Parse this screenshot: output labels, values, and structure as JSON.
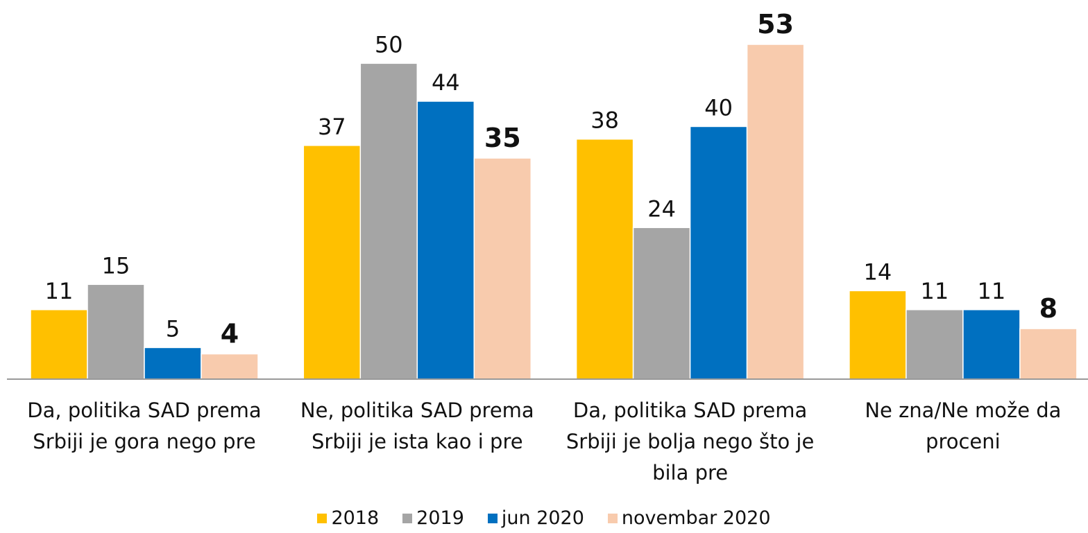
{
  "chart_data": {
    "type": "bar",
    "categories": [
      "Da, politika SAD prema Srbiji je gora nego pre",
      "Ne, politika SAD prema Srbiji je ista kao i pre",
      "Da, politika SAD prema Srbiji je bolja nego što je bila pre",
      "Ne zna/Ne može da proceni"
    ],
    "series": [
      {
        "name": "2018",
        "color": "#FFC000",
        "values": [
          11,
          37,
          38,
          14
        ]
      },
      {
        "name": "2019",
        "color": "#A5A5A5",
        "values": [
          15,
          50,
          24,
          11
        ]
      },
      {
        "name": "jun 2020",
        "color": "#0070C0",
        "values": [
          5,
          44,
          40,
          11
        ]
      },
      {
        "name": "novembar 2020",
        "color": "#F8CBAD",
        "values": [
          4,
          35,
          53,
          8
        ],
        "bold": true
      }
    ],
    "legend": "bottom"
  }
}
